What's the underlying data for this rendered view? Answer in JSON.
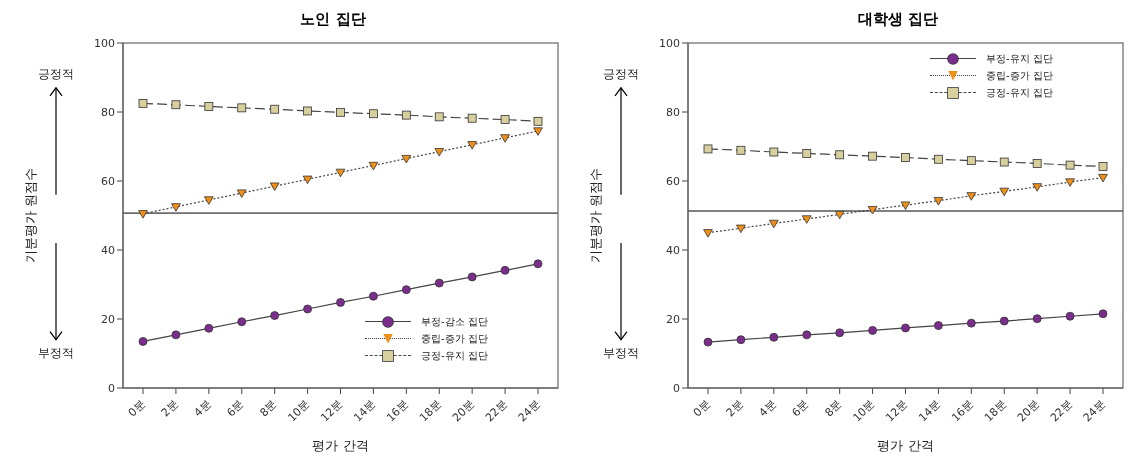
{
  "chart_data": [
    {
      "type": "line",
      "title": "노인 집단",
      "xlabel": "평가 간격",
      "ylabel": "기분평가 원점수",
      "annotations": [
        "긍정적",
        "부정적"
      ],
      "categories": [
        "0분",
        "2분",
        "4분",
        "6분",
        "8분",
        "10분",
        "12분",
        "14분",
        "16분",
        "18분",
        "20분",
        "22분",
        "24분"
      ],
      "ylim": [
        0,
        100
      ],
      "yticks": [
        0,
        20,
        40,
        60,
        80,
        100
      ],
      "legend": "bottom right",
      "grid": false,
      "ref_lines": [
        {
          "axis": "y",
          "value": 50.7,
          "color": "#000000"
        }
      ],
      "series": [
        {
          "name": "부정-감소 집단",
          "color": "#7b2d8b",
          "marker": "circle",
          "line_style": "solid",
          "values": [
            13.5,
            15.4,
            17.3,
            19.2,
            21.0,
            22.9,
            24.8,
            26.6,
            28.5,
            30.4,
            32.2,
            34.1,
            36.0
          ]
        },
        {
          "name": "중립-증가 집단",
          "color": "#f0901a",
          "marker": "triangle",
          "line_style": "dotted",
          "values": [
            50.5,
            52.5,
            54.5,
            56.5,
            58.5,
            60.5,
            62.5,
            64.5,
            66.5,
            68.5,
            70.5,
            72.5,
            74.5
          ]
        },
        {
          "name": "긍정-유지 집단",
          "color": "#d8cf9f",
          "marker": "square",
          "line_style": "dashed",
          "values": [
            82.5,
            82.1,
            81.6,
            81.2,
            80.8,
            80.3,
            79.9,
            79.5,
            79.1,
            78.6,
            78.2,
            77.8,
            77.3
          ]
        }
      ]
    },
    {
      "type": "line",
      "title": "대학생 집단",
      "xlabel": "평가 간격",
      "ylabel": "기분평가 원점수",
      "annotations": [
        "긍정적",
        "부정적"
      ],
      "categories": [
        "0분",
        "2분",
        "4분",
        "6분",
        "8분",
        "10분",
        "12분",
        "14분",
        "16분",
        "18분",
        "20분",
        "22분",
        "24분"
      ],
      "ylim": [
        0,
        100
      ],
      "yticks": [
        0,
        20,
        40,
        60,
        80,
        100
      ],
      "legend": "top right",
      "grid": false,
      "ref_lines": [
        {
          "axis": "y",
          "value": 51.3,
          "color": "#000000"
        }
      ],
      "series": [
        {
          "name": "부정-유지 집단",
          "color": "#7b2d8b",
          "marker": "circle",
          "line_style": "solid",
          "values": [
            13.3,
            14.0,
            14.7,
            15.4,
            16.0,
            16.7,
            17.4,
            18.1,
            18.8,
            19.4,
            20.1,
            20.8,
            21.5
          ]
        },
        {
          "name": "중립-증가 집단",
          "color": "#f0901a",
          "marker": "triangle",
          "line_style": "dotted",
          "values": [
            45.0,
            46.3,
            47.7,
            49.0,
            50.3,
            51.7,
            53.0,
            54.3,
            55.7,
            57.0,
            58.3,
            59.7,
            61.0
          ]
        },
        {
          "name": "긍정-유지 집단",
          "color": "#d8cf9f",
          "marker": "square",
          "line_style": "dashed",
          "values": [
            69.3,
            68.9,
            68.4,
            68.0,
            67.6,
            67.2,
            66.8,
            66.3,
            65.9,
            65.5,
            65.1,
            64.6,
            64.2
          ]
        }
      ]
    }
  ]
}
